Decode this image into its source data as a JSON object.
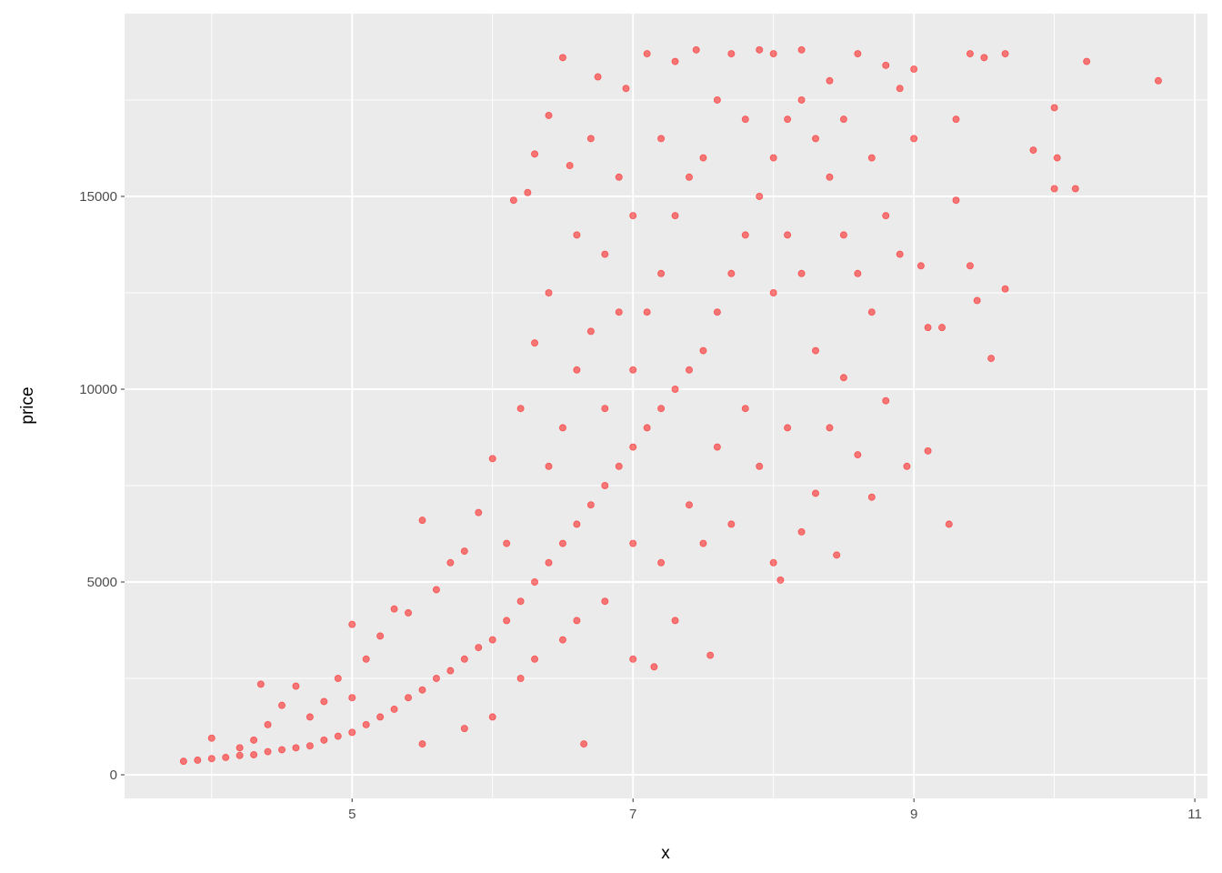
{
  "chart_data": {
    "type": "scatter",
    "title": "",
    "xlabel": "x",
    "ylabel": "price",
    "xlim": [
      3.38,
      11.09
    ],
    "ylim": [
      -613,
      19740
    ],
    "x_ticks": [
      5,
      7,
      9,
      11
    ],
    "x_tick_labels": [
      "5",
      "7",
      "9",
      "11"
    ],
    "x_minor_ticks": [
      4,
      6,
      8,
      10
    ],
    "y_ticks": [
      0,
      5000,
      10000,
      15000
    ],
    "y_tick_labels": [
      "0",
      "5000",
      "10000",
      "15000"
    ],
    "y_minor_ticks": [
      2500,
      7500,
      12500,
      17500
    ],
    "grid": true,
    "legend": "none",
    "point_color": "#FF0000",
    "point_alpha": 0.5,
    "panel_background": "#EBEBEB",
    "note_sample": "representative sample of the dense point cloud",
    "points": [
      [
        3.8,
        350
      ],
      [
        3.9,
        380
      ],
      [
        4.0,
        420
      ],
      [
        4.0,
        950
      ],
      [
        4.1,
        450
      ],
      [
        4.2,
        500
      ],
      [
        4.2,
        700
      ],
      [
        4.3,
        520
      ],
      [
        4.3,
        900
      ],
      [
        4.35,
        2350
      ],
      [
        4.4,
        600
      ],
      [
        4.4,
        1300
      ],
      [
        4.5,
        650
      ],
      [
        4.5,
        1800
      ],
      [
        4.6,
        700
      ],
      [
        4.6,
        2300
      ],
      [
        4.7,
        750
      ],
      [
        4.7,
        1500
      ],
      [
        4.8,
        900
      ],
      [
        4.8,
        1900
      ],
      [
        4.9,
        1000
      ],
      [
        4.9,
        2500
      ],
      [
        5.0,
        1100
      ],
      [
        5.0,
        3900
      ],
      [
        5.0,
        2000
      ],
      [
        5.1,
        1300
      ],
      [
        5.1,
        3000
      ],
      [
        5.2,
        1500
      ],
      [
        5.2,
        3600
      ],
      [
        5.3,
        1700
      ],
      [
        5.3,
        4300
      ],
      [
        5.4,
        2000
      ],
      [
        5.4,
        4200
      ],
      [
        5.5,
        2200
      ],
      [
        5.5,
        6600
      ],
      [
        5.5,
        800
      ],
      [
        5.6,
        2500
      ],
      [
        5.6,
        4800
      ],
      [
        5.7,
        2700
      ],
      [
        5.7,
        5500
      ],
      [
        5.8,
        3000
      ],
      [
        5.8,
        1200
      ],
      [
        5.8,
        5800
      ],
      [
        5.9,
        3300
      ],
      [
        5.9,
        6800
      ],
      [
        6.0,
        3500
      ],
      [
        6.0,
        1500
      ],
      [
        6.0,
        8200
      ],
      [
        6.1,
        4000
      ],
      [
        6.1,
        6000
      ],
      [
        6.15,
        14900
      ],
      [
        6.2,
        4500
      ],
      [
        6.2,
        9500
      ],
      [
        6.2,
        2500
      ],
      [
        6.25,
        15100
      ],
      [
        6.3,
        5000
      ],
      [
        6.3,
        11200
      ],
      [
        6.3,
        16100
      ],
      [
        6.3,
        3000
      ],
      [
        6.4,
        5500
      ],
      [
        6.4,
        8000
      ],
      [
        6.4,
        12500
      ],
      [
        6.4,
        17100
      ],
      [
        6.5,
        6000
      ],
      [
        6.5,
        9000
      ],
      [
        6.5,
        18600
      ],
      [
        6.5,
        3500
      ],
      [
        6.55,
        15800
      ],
      [
        6.6,
        6500
      ],
      [
        6.6,
        10500
      ],
      [
        6.6,
        14000
      ],
      [
        6.6,
        4000
      ],
      [
        6.65,
        800
      ],
      [
        6.7,
        7000
      ],
      [
        6.7,
        11500
      ],
      [
        6.7,
        16500
      ],
      [
        6.75,
        18100
      ],
      [
        6.8,
        7500
      ],
      [
        6.8,
        9500
      ],
      [
        6.8,
        13500
      ],
      [
        6.8,
        4500
      ],
      [
        6.9,
        8000
      ],
      [
        6.9,
        12000
      ],
      [
        6.9,
        15500
      ],
      [
        6.95,
        17800
      ],
      [
        7.0,
        8500
      ],
      [
        7.0,
        6000
      ],
      [
        7.0,
        10500
      ],
      [
        7.0,
        14500
      ],
      [
        7.0,
        3000
      ],
      [
        7.1,
        9000
      ],
      [
        7.1,
        12000
      ],
      [
        7.1,
        18700
      ],
      [
        7.15,
        2800
      ],
      [
        7.2,
        9500
      ],
      [
        7.2,
        13000
      ],
      [
        7.2,
        16500
      ],
      [
        7.2,
        5500
      ],
      [
        7.3,
        10000
      ],
      [
        7.3,
        14500
      ],
      [
        7.3,
        18500
      ],
      [
        7.3,
        4000
      ],
      [
        7.4,
        10500
      ],
      [
        7.4,
        15500
      ],
      [
        7.4,
        7000
      ],
      [
        7.45,
        18800
      ],
      [
        7.5,
        11000
      ],
      [
        7.5,
        16000
      ],
      [
        7.5,
        6000
      ],
      [
        7.55,
        3100
      ],
      [
        7.6,
        12000
      ],
      [
        7.6,
        17500
      ],
      [
        7.6,
        8500
      ],
      [
        7.7,
        13000
      ],
      [
        7.7,
        18700
      ],
      [
        7.7,
        6500
      ],
      [
        7.8,
        14000
      ],
      [
        7.8,
        9500
      ],
      [
        7.8,
        17000
      ],
      [
        7.9,
        15000
      ],
      [
        7.9,
        18800
      ],
      [
        7.9,
        8000
      ],
      [
        8.0,
        16000
      ],
      [
        8.0,
        12500
      ],
      [
        8.0,
        18700
      ],
      [
        8.0,
        5500
      ],
      [
        8.05,
        5050
      ],
      [
        8.1,
        17000
      ],
      [
        8.1,
        14000
      ],
      [
        8.1,
        9000
      ],
      [
        8.2,
        17500
      ],
      [
        8.2,
        13000
      ],
      [
        8.2,
        18800
      ],
      [
        8.2,
        6300
      ],
      [
        8.3,
        16500
      ],
      [
        8.3,
        11000
      ],
      [
        8.3,
        7300
      ],
      [
        8.4,
        15500
      ],
      [
        8.4,
        18000
      ],
      [
        8.4,
        9000
      ],
      [
        8.45,
        5700
      ],
      [
        8.5,
        14000
      ],
      [
        8.5,
        17000
      ],
      [
        8.5,
        10300
      ],
      [
        8.6,
        13000
      ],
      [
        8.6,
        18700
      ],
      [
        8.6,
        8300
      ],
      [
        8.7,
        12000
      ],
      [
        8.7,
        16000
      ],
      [
        8.7,
        7200
      ],
      [
        8.8,
        14500
      ],
      [
        8.8,
        18400
      ],
      [
        8.8,
        9700
      ],
      [
        8.9,
        13500
      ],
      [
        8.9,
        17800
      ],
      [
        8.95,
        8000
      ],
      [
        9.0,
        16500
      ],
      [
        9.0,
        18300
      ],
      [
        9.05,
        13200
      ],
      [
        9.1,
        11600
      ],
      [
        9.1,
        8400
      ],
      [
        9.2,
        11600
      ],
      [
        9.25,
        6500
      ],
      [
        9.3,
        17000
      ],
      [
        9.3,
        14900
      ],
      [
        9.4,
        18700
      ],
      [
        9.4,
        13200
      ],
      [
        9.45,
        12300
      ],
      [
        9.5,
        18600
      ],
      [
        9.55,
        10800
      ],
      [
        9.65,
        18700
      ],
      [
        9.65,
        12600
      ],
      [
        9.85,
        16200
      ],
      [
        10.0,
        17300
      ],
      [
        10.0,
        15200
      ],
      [
        10.02,
        16000
      ],
      [
        10.15,
        15200
      ],
      [
        10.23,
        18500
      ],
      [
        10.74,
        18000
      ]
    ]
  }
}
